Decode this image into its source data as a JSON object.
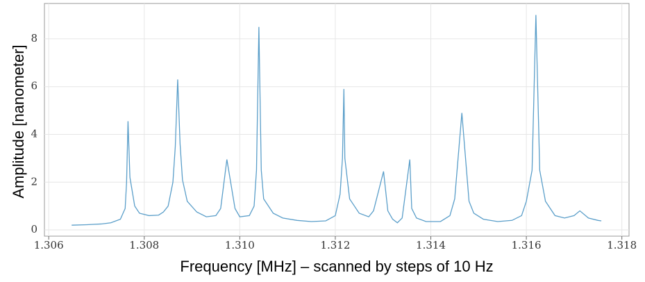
{
  "chart_data": {
    "type": "line",
    "xlabel": "Frequency [MHz] – scanned by steps of 10 Hz",
    "ylabel": "Amplitude [nanometer]",
    "xlim": [
      1.30591,
      1.31815
    ],
    "ylim": [
      -0.26,
      9.48
    ],
    "xticks": [
      1.306,
      1.308,
      {
        "value": 1.31,
        "label": "1.310"
      },
      1.312,
      1.314,
      1.316,
      1.318
    ],
    "yticks": [
      0,
      2,
      4,
      6,
      8
    ],
    "grid": true,
    "series": [
      {
        "color": "#5a9ec9",
        "x": [
          1.30648,
          1.3068,
          1.3071,
          1.3073,
          1.3075,
          1.3076,
          1.30763,
          1.30766,
          1.3077,
          1.3078,
          1.3079,
          1.3081,
          1.3083,
          1.3084,
          1.3085,
          1.3086,
          1.30865,
          1.3087,
          1.30875,
          1.3088,
          1.3089,
          1.3091,
          1.3093,
          1.3095,
          1.3096,
          1.30973,
          1.3099,
          1.31,
          1.3102,
          1.3103,
          1.31035,
          1.3104,
          1.31045,
          1.3105,
          1.3107,
          1.3109,
          1.3112,
          1.3115,
          1.3118,
          1.312,
          1.3121,
          1.31215,
          1.31218,
          1.3122,
          1.3123,
          1.3125,
          1.3127,
          1.3128,
          1.31301,
          1.3131,
          1.3132,
          1.3133,
          1.3134,
          1.31356,
          1.3136,
          1.3137,
          1.3139,
          1.3142,
          1.3144,
          1.3145,
          1.31465,
          1.3148,
          1.3149,
          1.3151,
          1.3154,
          1.3157,
          1.3159,
          1.316,
          1.31612,
          1.3162,
          1.31628,
          1.3164,
          1.3166,
          1.3168,
          1.317,
          1.31712,
          1.3173,
          1.3175,
          1.31757
        ],
        "values": [
          0.2,
          0.22,
          0.25,
          0.3,
          0.45,
          0.9,
          2.0,
          4.55,
          2.2,
          1.0,
          0.7,
          0.6,
          0.62,
          0.75,
          1.0,
          2.0,
          3.5,
          6.3,
          3.6,
          2.1,
          1.2,
          0.75,
          0.55,
          0.6,
          0.9,
          2.95,
          0.9,
          0.55,
          0.6,
          1.0,
          2.5,
          8.5,
          2.5,
          1.3,
          0.7,
          0.5,
          0.4,
          0.35,
          0.38,
          0.6,
          1.5,
          3.0,
          5.9,
          3.0,
          1.3,
          0.7,
          0.55,
          0.8,
          2.45,
          0.8,
          0.45,
          0.3,
          0.5,
          2.95,
          0.9,
          0.5,
          0.35,
          0.35,
          0.6,
          1.3,
          4.9,
          1.2,
          0.7,
          0.45,
          0.35,
          0.4,
          0.6,
          1.2,
          2.5,
          9.0,
          2.5,
          1.2,
          0.6,
          0.5,
          0.6,
          0.8,
          0.5,
          0.4,
          0.38
        ]
      }
    ]
  }
}
